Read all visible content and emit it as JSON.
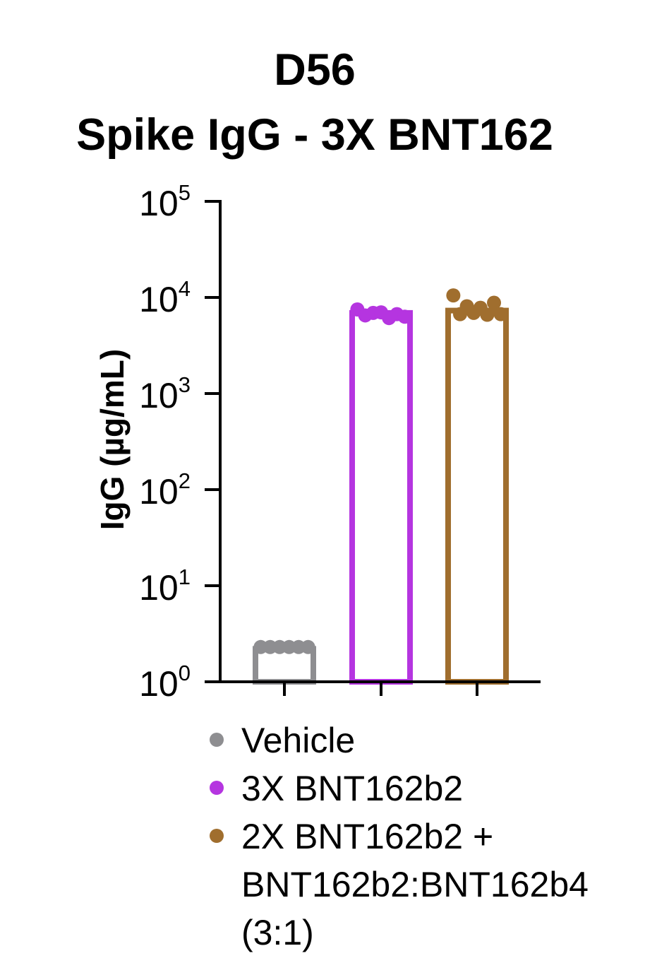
{
  "chart_data": {
    "type": "bar",
    "title_lines": [
      "D56",
      "Spike IgG - 3X BNT162"
    ],
    "xlabel": "",
    "ylabel": "IgG (µg/mL)",
    "yscale": "log",
    "ylim": [
      1,
      100000
    ],
    "yticks": [
      {
        "value": 1,
        "base": "10",
        "exp": "0"
      },
      {
        "value": 10,
        "base": "10",
        "exp": "1"
      },
      {
        "value": 100,
        "base": "10",
        "exp": "2"
      },
      {
        "value": 1000,
        "base": "10",
        "exp": "3"
      },
      {
        "value": 10000,
        "base": "10",
        "exp": "4"
      },
      {
        "value": 100000,
        "base": "10",
        "exp": "5"
      }
    ],
    "series": [
      {
        "name": "Vehicle",
        "color": "#8e8e91",
        "value": 2.2,
        "points": [
          2.3,
          2.3,
          2.3,
          2.3,
          2.3,
          2.3
        ]
      },
      {
        "name": "3X BNT162b2",
        "color": "#b535e0",
        "value": 6900,
        "points": [
          7500,
          6500,
          6900,
          7000,
          6100,
          6700,
          6300
        ]
      },
      {
        "name": "2X BNT162b2 + BNT162b2:BNT162b4 (3:1)",
        "legend_lines": [
          "2X BNT162b2 +",
          "BNT162b2:BNT162b4",
          "(3:1)"
        ],
        "color": "#a06e2e",
        "value": 7300,
        "points": [
          10500,
          6700,
          8100,
          6900,
          7800,
          6600,
          8800,
          6700
        ]
      }
    ],
    "grid": false,
    "legend_position": "bottom-left"
  }
}
